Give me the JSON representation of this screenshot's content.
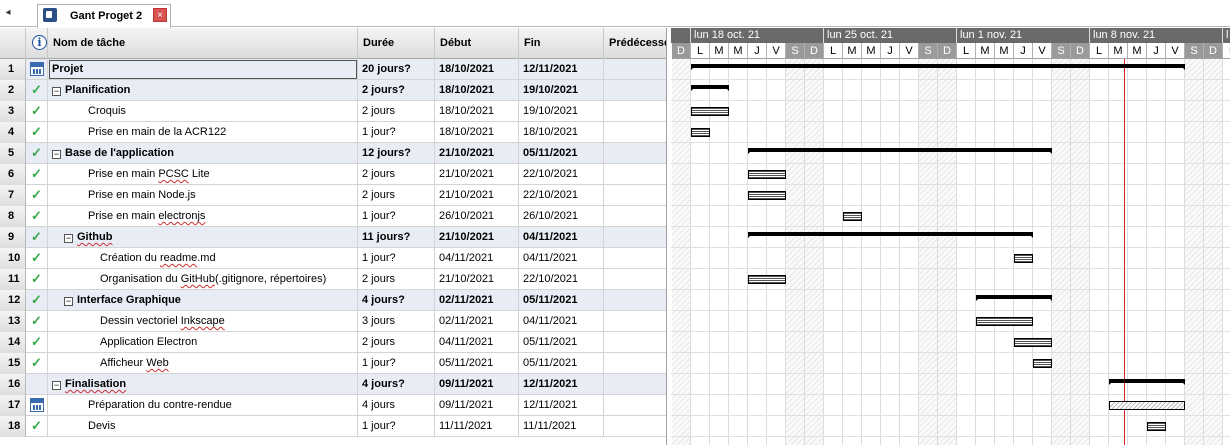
{
  "tab": {
    "title": "Gant Proget 2",
    "close": "×",
    "nav": "◂"
  },
  "headers": {
    "info": "i",
    "name": "Nom de tâche",
    "duration": "Durée",
    "start": "Début",
    "finish": "Fin",
    "pred": "Prédécesseurs"
  },
  "rows": [
    {
      "id": "1",
      "indicator": "calendar-icon",
      "name": "Projet",
      "duration": "20 jours?",
      "start": "18/10/2021",
      "finish": "12/11/2021",
      "summary": true
    },
    {
      "id": "2",
      "indicator": "check-icon",
      "name": "Planification",
      "duration": "2 jours?",
      "start": "18/10/2021",
      "finish": "19/10/2021",
      "summary": true
    },
    {
      "id": "3",
      "indicator": "check-icon",
      "name": "Croquis",
      "duration": "2 jours",
      "start": "18/10/2021",
      "finish": "19/10/2021",
      "summary": false
    },
    {
      "id": "4",
      "indicator": "check-icon",
      "name": "Prise en main de la ACR122",
      "duration": "1 jour?",
      "start": "18/10/2021",
      "finish": "18/10/2021",
      "summary": false
    },
    {
      "id": "5",
      "indicator": "check-icon",
      "name": "Base de l'application",
      "duration": "12 jours?",
      "start": "21/10/2021",
      "finish": "05/11/2021",
      "summary": true
    },
    {
      "id": "6",
      "indicator": "check-icon",
      "name": "Prise en main PCSC Lite",
      "duration": "2 jours",
      "start": "21/10/2021",
      "finish": "22/10/2021",
      "summary": false
    },
    {
      "id": "7",
      "indicator": "check-icon",
      "name": "Prise en main Node.js",
      "duration": "2 jours",
      "start": "21/10/2021",
      "finish": "22/10/2021",
      "summary": false
    },
    {
      "id": "8",
      "indicator": "check-icon",
      "name": "Prise en main electronjs",
      "duration": "1 jour?",
      "start": "26/10/2021",
      "finish": "26/10/2021",
      "summary": false
    },
    {
      "id": "9",
      "indicator": "check-icon",
      "name": "Github",
      "duration": "11 jours?",
      "start": "21/10/2021",
      "finish": "04/11/2021",
      "summary": true
    },
    {
      "id": "10",
      "indicator": "check-icon",
      "name": "Création du readme.md",
      "duration": "1 jour?",
      "start": "04/11/2021",
      "finish": "04/11/2021",
      "summary": false
    },
    {
      "id": "11",
      "indicator": "check-icon",
      "name": "Organisation du GitHub(.gitignore, répertoires)",
      "duration": "2 jours",
      "start": "21/10/2021",
      "finish": "22/10/2021",
      "summary": false
    },
    {
      "id": "12",
      "indicator": "check-icon",
      "name": "Interface Graphique",
      "duration": "4 jours?",
      "start": "02/11/2021",
      "finish": "05/11/2021",
      "summary": true
    },
    {
      "id": "13",
      "indicator": "check-icon",
      "name": "Dessin vectoriel Inkscape",
      "duration": "3 jours",
      "start": "02/11/2021",
      "finish": "04/11/2021",
      "summary": false
    },
    {
      "id": "14",
      "indicator": "check-icon",
      "name": "Application Electron",
      "duration": "2 jours",
      "start": "04/11/2021",
      "finish": "05/11/2021",
      "summary": false
    },
    {
      "id": "15",
      "indicator": "check-icon",
      "name": "Afficheur Web",
      "duration": "1 jour?",
      "start": "05/11/2021",
      "finish": "05/11/2021",
      "summary": false
    },
    {
      "id": "16",
      "indicator": "",
      "name": "Finalisation",
      "duration": "4 jours?",
      "start": "09/11/2021",
      "finish": "12/11/2021",
      "summary": true
    },
    {
      "id": "17",
      "indicator": "calendar-icon",
      "name": "Préparation du contre-rendue",
      "duration": "4 jours",
      "start": "09/11/2021",
      "finish": "12/11/2021",
      "summary": false
    },
    {
      "id": "18",
      "indicator": "check-icon",
      "name": "Devis",
      "duration": "1 jour?",
      "start": "11/11/2021",
      "finish": "11/11/2021",
      "summary": false
    }
  ],
  "gantt": {
    "weeks": [
      "lun 18 oct. 21",
      "lun 25 oct. 21",
      "lun 1 nov. 21",
      "lun 8 nov. 21",
      "l"
    ],
    "days": [
      "D",
      "L",
      "M",
      "M",
      "J",
      "V",
      "S",
      "D",
      "L",
      "M",
      "M",
      "J",
      "V",
      "S",
      "D",
      "L",
      "M",
      "M",
      "J",
      "V",
      "S",
      "D",
      "L",
      "M",
      "M",
      "J",
      "V",
      "S",
      "D",
      "L"
    ],
    "today": "10/11/2021"
  }
}
